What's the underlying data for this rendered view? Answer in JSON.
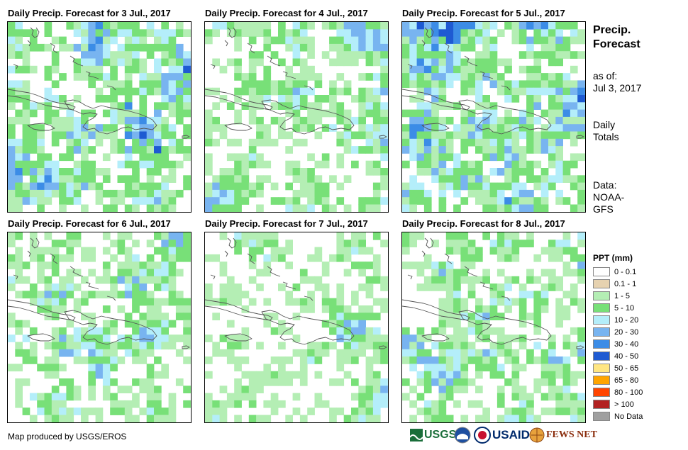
{
  "panels": [
    {
      "title": "Daily Precip. Forecast for 3 Jul., 2017",
      "seed": 11,
      "profile": "wet"
    },
    {
      "title": "Daily Precip. Forecast for 4 Jul., 2017",
      "seed": 23,
      "profile": "mid"
    },
    {
      "title": "Daily Precip. Forecast for 5 Jul., 2017",
      "seed": 37,
      "profile": "wetter"
    },
    {
      "title": "Daily Precip. Forecast for 6 Jul., 2017",
      "seed": 41,
      "profile": "mid"
    },
    {
      "title": "Daily Precip. Forecast for 7 Jul., 2017",
      "seed": 53,
      "profile": "dry"
    },
    {
      "title": "Daily Precip. Forecast for 8 Jul., 2017",
      "seed": 67,
      "profile": "mid"
    }
  ],
  "side": {
    "title_line1": "Precip.",
    "title_line2": "Forecast",
    "asof_label": "as of:",
    "asof_date": "Jul 3, 2017",
    "daily_line1": "Daily",
    "daily_line2": "Totals",
    "data_label": "Data:",
    "data_source1": "NOAA-",
    "data_source2": "GFS"
  },
  "legend": {
    "title": "PPT (mm)",
    "items": [
      {
        "label": "0 - 0.1",
        "color": "#ffffff"
      },
      {
        "label": "0.1 - 1",
        "color": "#e6d2b0"
      },
      {
        "label": "1 - 5",
        "color": "#b4eeb4"
      },
      {
        "label": "5 - 10",
        "color": "#78e078"
      },
      {
        "label": "10 - 20",
        "color": "#b4eefa"
      },
      {
        "label": "20 - 30",
        "color": "#78b4f0"
      },
      {
        "label": "30 - 40",
        "color": "#3c8ce6"
      },
      {
        "label": "40 - 50",
        "color": "#1e5ad2"
      },
      {
        "label": "50 - 65",
        "color": "#ffe682"
      },
      {
        "label": "65 - 80",
        "color": "#ffa500"
      },
      {
        "label": "80 - 100",
        "color": "#ff4500"
      },
      {
        "label": "> 100",
        "color": "#b22222"
      },
      {
        "label": "No Data",
        "color": "#a0a0a0"
      }
    ]
  },
  "footer": {
    "credit": "Map produced by USGS/EROS"
  },
  "logos": {
    "usgs": "USGS",
    "usaid": "USAID",
    "fewsnet": "FEWS NET"
  }
}
